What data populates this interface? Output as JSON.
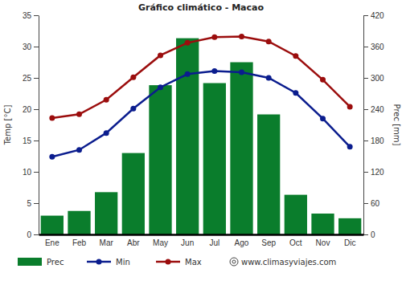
{
  "chart_data": {
    "type": "bar",
    "title": "Gráfico climático - Macao",
    "y_label": "Temp [°C]",
    "y2_label": "Prec [mm]",
    "categories": [
      "Ene",
      "Feb",
      "Mar",
      "Abr",
      "May",
      "Jun",
      "Jul",
      "Ago",
      "Sep",
      "Oct",
      "Nov",
      "Dic"
    ],
    "series": [
      {
        "name": "Prec",
        "type": "bar",
        "axis": "y2",
        "color": "#0a7d2c",
        "values": [
          36,
          45,
          81,
          156,
          286,
          376,
          290,
          330,
          230,
          76,
          40,
          31
        ]
      },
      {
        "name": "Min",
        "type": "line",
        "color": "#0b1d8e",
        "marker": "circle",
        "values": [
          12.4,
          13.5,
          16.2,
          20.1,
          23.5,
          25.6,
          26.1,
          25.9,
          25.0,
          22.6,
          18.5,
          14.0
        ]
      },
      {
        "name": "Max",
        "type": "line",
        "color": "#9b0d0d",
        "marker": "circle",
        "values": [
          18.6,
          19.2,
          21.5,
          25.1,
          28.6,
          30.6,
          31.5,
          31.6,
          30.8,
          28.5,
          24.7,
          20.4
        ]
      }
    ],
    "ylim": [
      0,
      35
    ],
    "yticks": [
      0,
      5,
      10,
      15,
      20,
      25,
      30,
      35
    ],
    "y2lim": [
      0,
      420
    ],
    "y2ticks": [
      0,
      60,
      120,
      180,
      240,
      300,
      360,
      420
    ],
    "grid": false,
    "legend": "bottom",
    "annotations": [
      "www.climasyviajes.com"
    ]
  }
}
